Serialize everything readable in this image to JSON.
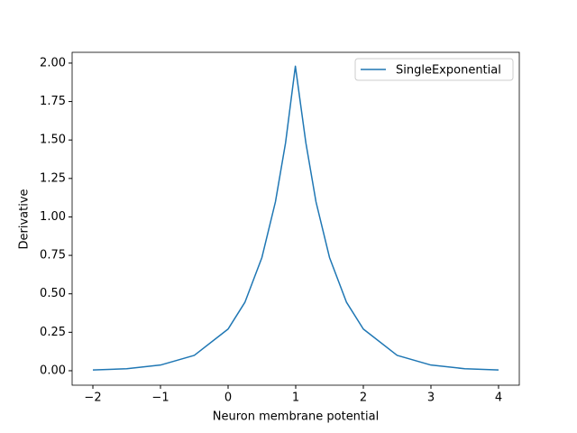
{
  "chart_data": {
    "type": "line",
    "xlabel": "Neuron membrane potential",
    "ylabel": "Derivative",
    "x": [
      -2,
      -1.5,
      -1,
      -0.5,
      0,
      0.25,
      0.5,
      0.7,
      0.85,
      0.995,
      1.15,
      1.3,
      1.5,
      1.75,
      2,
      2.5,
      3,
      3.5,
      4
    ],
    "series": [
      {
        "name": "SingleExponential",
        "color": "#1f77b4",
        "values": [
          0.005,
          0.013,
          0.037,
          0.1,
          0.271,
          0.446,
          0.736,
          1.098,
          1.482,
          1.98,
          1.482,
          1.098,
          0.736,
          0.446,
          0.271,
          0.1,
          0.037,
          0.013,
          0.005
        ]
      }
    ],
    "xlim": [
      -2.307,
      4.307
    ],
    "ylim": [
      -0.094,
      2.07
    ],
    "xticks": [
      {
        "value": -2,
        "label": "−2"
      },
      {
        "value": -1,
        "label": "−1"
      },
      0,
      1,
      2,
      3,
      4
    ],
    "yticks": [
      {
        "value": 0,
        "label": "0.00"
      },
      {
        "value": 0.25,
        "label": "0.25"
      },
      {
        "value": 0.5,
        "label": "0.50"
      },
      {
        "value": 0.75,
        "label": "0.75"
      },
      {
        "value": 1,
        "label": "1.00"
      },
      {
        "value": 1.25,
        "label": "1.25"
      },
      {
        "value": 1.5,
        "label": "1.50"
      },
      {
        "value": 1.75,
        "label": "1.75"
      },
      {
        "value": 2,
        "label": "2.00"
      }
    ],
    "legend": "upper right"
  }
}
